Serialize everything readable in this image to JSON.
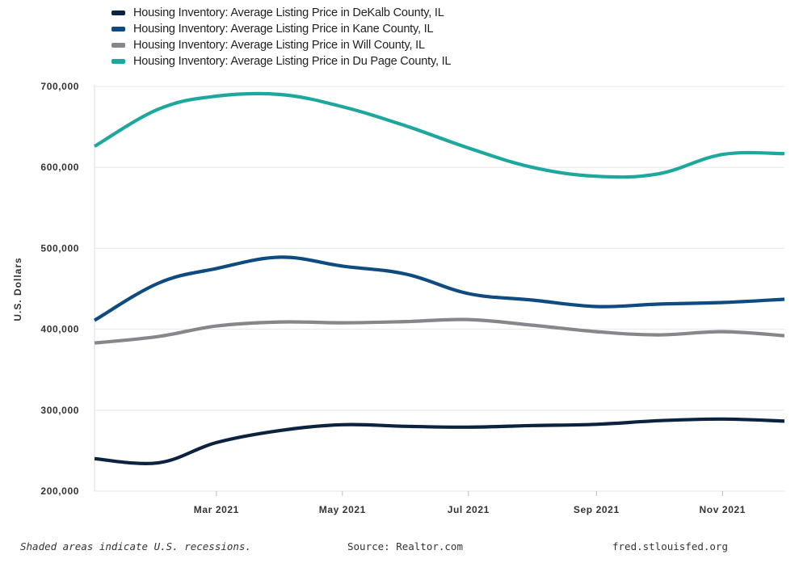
{
  "chart_data": {
    "type": "line",
    "title": "",
    "xlabel": "",
    "ylabel": "U.S. Dollars",
    "ylim": [
      200000,
      700000
    ],
    "y_ticks": [
      200000,
      300000,
      400000,
      500000,
      600000,
      700000
    ],
    "y_tick_labels": [
      "200,000",
      "300,000",
      "400,000",
      "500,000",
      "600,000",
      "700,000"
    ],
    "x_range": [
      "2021-01-01",
      "2021-12-01"
    ],
    "x_ticks": [
      "2021-03-01",
      "2021-05-01",
      "2021-07-01",
      "2021-09-01",
      "2021-11-01"
    ],
    "x_tick_labels": [
      "Mar 2021",
      "May 2021",
      "Jul 2021",
      "Sep 2021",
      "Nov 2021"
    ],
    "x": [
      "2021-01-01",
      "2021-02-01",
      "2021-03-01",
      "2021-04-01",
      "2021-05-01",
      "2021-06-01",
      "2021-07-01",
      "2021-08-01",
      "2021-09-01",
      "2021-10-01",
      "2021-11-01",
      "2021-12-01"
    ],
    "grid": "horizontal",
    "legend_position": "top-left",
    "series": [
      {
        "name": "Housing Inventory: Average Listing Price in DeKalb County, IL",
        "color": "#0c2340",
        "values": [
          240000,
          235000,
          260000,
          275000,
          282000,
          280000,
          279000,
          281000,
          282500,
          287000,
          289000,
          286500
        ]
      },
      {
        "name": "Housing Inventory: Average Listing Price in Kane County, IL",
        "color": "#0e4b80",
        "values": [
          411000,
          457000,
          475000,
          489000,
          478000,
          468000,
          444000,
          436000,
          428000,
          431000,
          433000,
          437000
        ]
      },
      {
        "name": "Housing Inventory: Average Listing Price in Will County, IL",
        "color": "#85878c",
        "values": [
          383000,
          391000,
          404000,
          409000,
          408000,
          409500,
          412000,
          405000,
          397000,
          393000,
          397000,
          392000
        ]
      },
      {
        "name": "Housing Inventory: Average Listing Price in Du Page County, IL",
        "color": "#1ea79c",
        "values": [
          626000,
          672000,
          688000,
          690000,
          675000,
          651000,
          624000,
          600000,
          589000,
          592000,
          616000,
          617000
        ]
      }
    ]
  },
  "footer": {
    "note": "Shaded areas indicate U.S. recessions.",
    "source": "Source: Realtor.com",
    "url": "fred.stlouisfed.org"
  }
}
